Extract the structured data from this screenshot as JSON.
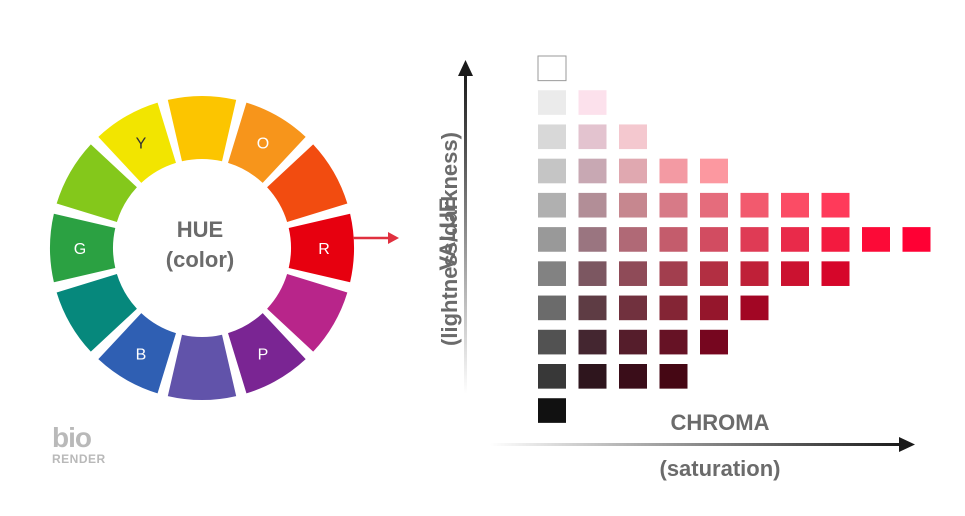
{
  "hue_wheel": {
    "title": "HUE",
    "subtitle": "(color)",
    "segment_colors": [
      "#e7000f",
      "#b8258a",
      "#7a2593",
      "#6153aa",
      "#2f5fb3",
      "#06887c",
      "#2ba142",
      "#84c81b",
      "#f2e500",
      "#fcc500",
      "#f7951b",
      "#f24c10"
    ],
    "segment_labels": [
      "R",
      "",
      "P",
      "",
      "B",
      "",
      "G",
      "",
      "Y",
      "",
      "O",
      ""
    ]
  },
  "munsell_chart": {
    "value_label": "VALUE",
    "value_sublabel": "(lightness/darkness)",
    "chroma_label": "CHROMA",
    "chroma_sublabel": "(saturation)",
    "rows": [
      [
        "#ffffff"
      ],
      [
        "#ebebeb",
        "#fce1ec"
      ],
      [
        "#d8d8d8",
        "#e3c3cf",
        "#f4c8cf"
      ],
      [
        "#c5c5c5",
        "#c8a8b3",
        "#e0a8b0",
        "#f39aa3",
        "#fc98a0"
      ],
      [
        "#b0b0b0",
        "#b28e97",
        "#c6878f",
        "#d77a87",
        "#e56c7c",
        "#f25a6e",
        "#fb4c65",
        "#ff3a5a"
      ],
      [
        "#999999",
        "#9a7580",
        "#b06976",
        "#c45c6c",
        "#d24c61",
        "#df3b55",
        "#e92a4a",
        "#f31a3f",
        "#fc0a37",
        "#ff0034"
      ],
      [
        "#828282",
        "#7c5761",
        "#8f4b58",
        "#a23e4e",
        "#b22f42",
        "#bf2038",
        "#cb1230",
        "#d6062a"
      ],
      [
        "#6b6b6b",
        "#5e3c44",
        "#71313e",
        "#842535",
        "#95162c",
        "#a20624"
      ],
      [
        "#525252",
        "#442630",
        "#551d2b",
        "#661225",
        "#76061f"
      ],
      [
        "#383838",
        "#2e151d",
        "#3a0d19",
        "#450714"
      ],
      [
        "#111111"
      ]
    ]
  },
  "logo": {
    "main": "bio",
    "sub": "RENDER"
  }
}
